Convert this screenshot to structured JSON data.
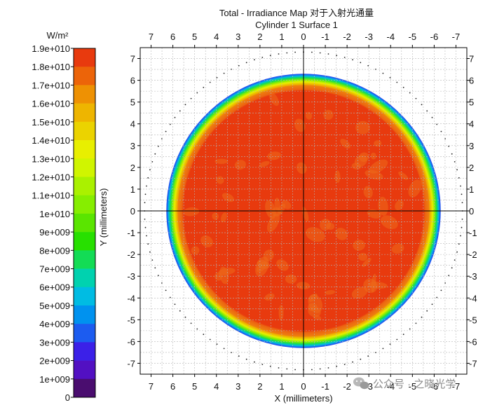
{
  "chart_data": {
    "type": "heatmap",
    "title": "Total - Irradiance Map 对于入射光通量",
    "subtitle": "Cylinder 1 Surface 1",
    "xlabel": "X (millimeters)",
    "ylabel": "Y (millimeters)",
    "xlim": [
      7.5,
      -7.5
    ],
    "ylim": [
      -7.5,
      7.5
    ],
    "x_ticks": [
      7,
      6,
      5,
      4,
      3,
      2,
      1,
      0,
      -1,
      -2,
      -3,
      -4,
      -5,
      -6,
      -7
    ],
    "y_ticks": [
      7,
      6,
      5,
      4,
      3,
      2,
      1,
      0,
      -1,
      -2,
      -3,
      -4,
      -5,
      -6,
      -7
    ],
    "x_tick_labels": [
      "7",
      "6",
      "5",
      "4",
      "3",
      "2",
      "1",
      "0",
      "-1",
      "-2",
      "-3",
      "-4",
      "-5",
      "-6",
      "-7"
    ],
    "y_tick_labels": [
      "7",
      "6",
      "5",
      "4",
      "3",
      "2",
      "1",
      "0",
      "-1",
      "-2",
      "-3",
      "-4",
      "-5",
      "-6",
      "-7"
    ],
    "grid": true,
    "spot_radius_mm": 6.3,
    "flat_top_level": 19000000000.0,
    "outer_dotted_ring_radius_mm": 7.3,
    "colorbar": {
      "unit": "W/m²",
      "levels": [
        19000000000.0,
        18000000000.0,
        17000000000.0,
        16000000000.0,
        15000000000.0,
        14000000000.0,
        13000000000.0,
        12000000000.0,
        11000000000.0,
        10000000000.0,
        9000000000.0,
        8000000000.0,
        7000000000.0,
        6000000000.0,
        5000000000.0,
        4000000000.0,
        3000000000.0,
        2000000000.0,
        1000000000.0,
        0
      ],
      "labels": [
        "1.9e+010",
        "1.8e+010",
        "1.7e+010",
        "1.6e+010",
        "1.5e+010",
        "1.4e+010",
        "1.3e+010",
        "1.2e+010",
        "1.1e+010",
        "1e+010",
        "9e+009",
        "8e+009",
        "7e+009",
        "6e+009",
        "5e+009",
        "4e+009",
        "3e+009",
        "2e+009",
        "1e+009",
        "0"
      ],
      "colors": [
        "#e83a0e",
        "#ec6409",
        "#ee9103",
        "#eeb500",
        "#ebd300",
        "#e8ef00",
        "#d0f500",
        "#aaf100",
        "#86ee00",
        "#5ae500",
        "#27e000",
        "#13dc55",
        "#00d2af",
        "#00bce3",
        "#0092ef",
        "#1c5cf0",
        "#3b20e8",
        "#5210c2",
        "#4a0d6f",
        "#ffffff"
      ]
    }
  },
  "watermark": "公众号 · 之晓光学",
  "icons": {
    "watermark_logo": "wechat-logo-icon"
  }
}
